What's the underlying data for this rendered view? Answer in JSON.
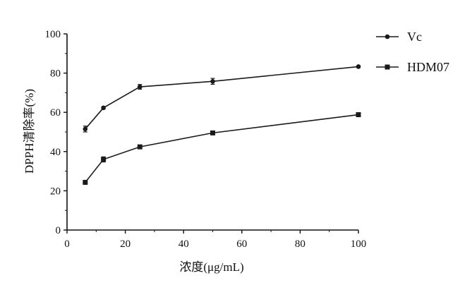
{
  "chart_data": {
    "type": "line",
    "title": "",
    "xlabel": "浓度(μg/mL)",
    "ylabel": "DPPH清除率(%)",
    "xlim": [
      0,
      100
    ],
    "ylim": [
      0,
      100
    ],
    "xticks": [
      0,
      20,
      40,
      60,
      80,
      100
    ],
    "yticks": [
      0,
      20,
      40,
      60,
      80,
      100
    ],
    "grid": false,
    "legend_position": "top-right",
    "x": [
      6.25,
      12.5,
      25,
      50,
      100
    ],
    "series": [
      {
        "name": "Vc",
        "marker": "circle",
        "color": "#1a1a1a",
        "values": [
          51.5,
          62.3,
          73.0,
          75.8,
          83.3
        ],
        "errors": [
          1.5,
          0.5,
          1.2,
          1.5,
          0.5
        ]
      },
      {
        "name": "HDM07",
        "marker": "square",
        "color": "#1a1a1a",
        "values": [
          24.3,
          36.0,
          42.4,
          49.5,
          58.8
        ],
        "errors": [
          0.5,
          1.3,
          0.8,
          0.5,
          0.5
        ]
      }
    ]
  }
}
